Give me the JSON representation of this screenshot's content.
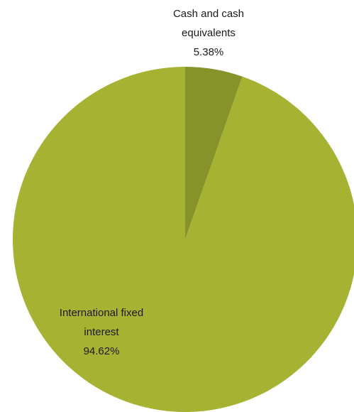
{
  "chart_data": {
    "type": "pie",
    "title": "",
    "slices": [
      {
        "label_lines": [
          "Cash and cash",
          "equivalents"
        ],
        "percent_label": "5.38%",
        "value": 5.38,
        "color": "#86922a"
      },
      {
        "label_lines": [
          "International fixed",
          "interest"
        ],
        "percent_label": "94.62%",
        "value": 94.62,
        "color": "#a5b232"
      }
    ],
    "start_angle_deg": 0,
    "direction": "clockwise",
    "legend": "none"
  }
}
